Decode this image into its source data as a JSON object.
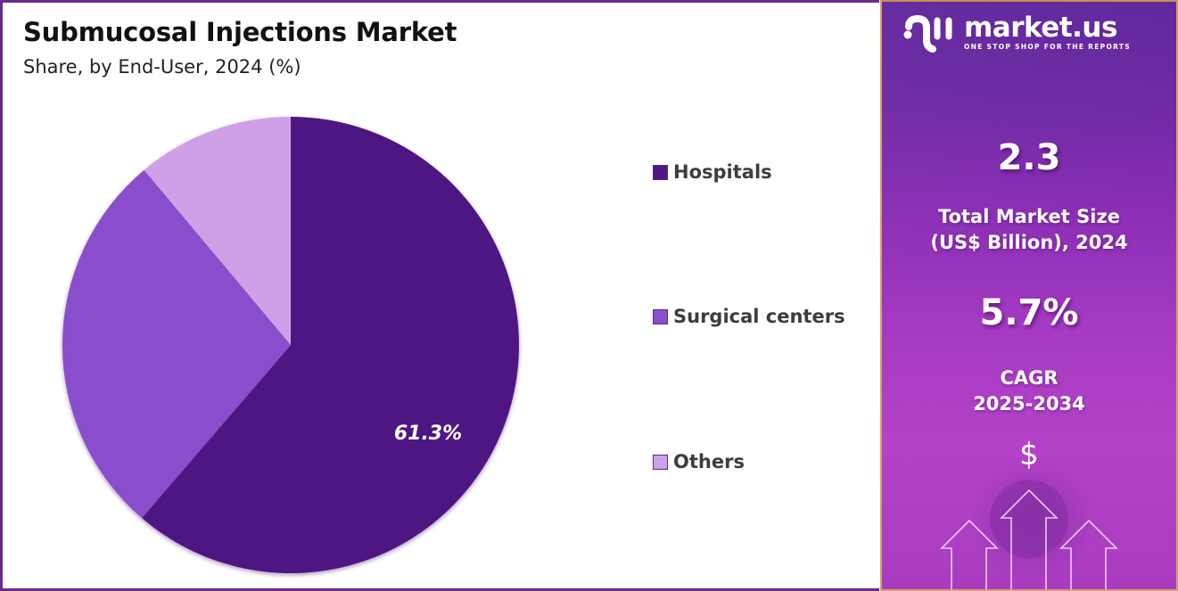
{
  "header": {
    "title": "Submucosal Injections Market",
    "subtitle": "Share, by End-User, 2024 (%)"
  },
  "chart_data": {
    "type": "pie",
    "title": "Submucosal Injections Market",
    "subtitle": "Share, by End-User, 2024 (%)",
    "categories": [
      "Hospitals",
      "Surgical centers",
      "Others"
    ],
    "values": [
      61.3,
      27.6,
      11.1
    ],
    "colors": [
      "#4e1783",
      "#8a4ecb",
      "#cfa0e8"
    ],
    "data_labels": [
      {
        "category": "Hospitals",
        "text": "61.3%"
      }
    ],
    "start_angle_deg": 0,
    "direction": "clockwise",
    "legend_position": "right"
  },
  "pie": {
    "label_hospitals": "61.3%"
  },
  "legend": {
    "items": [
      {
        "label": "Hospitals",
        "color": "#4e1783"
      },
      {
        "label": "Surgical centers",
        "color": "#8a4ecb"
      },
      {
        "label": "Others",
        "color": "#cfa0e8"
      }
    ]
  },
  "sidebar": {
    "logo_name": "market.us",
    "logo_tagline": "ONE STOP SHOP FOR THE REPORTS",
    "market_size_value": "2.3",
    "market_size_label_line1": "Total Market Size",
    "market_size_label_line2": "(US$ Billion), 2024",
    "cagr_value": "5.7%",
    "cagr_label_line1": "CAGR",
    "cagr_label_line2": "2025-2034",
    "dollar_icon": "$"
  },
  "colors": {
    "frame_border": "#6a2a8c",
    "panel_border": "#d9a062",
    "panel_top": "#5a1f98",
    "panel_bottom": "#b442c8"
  }
}
